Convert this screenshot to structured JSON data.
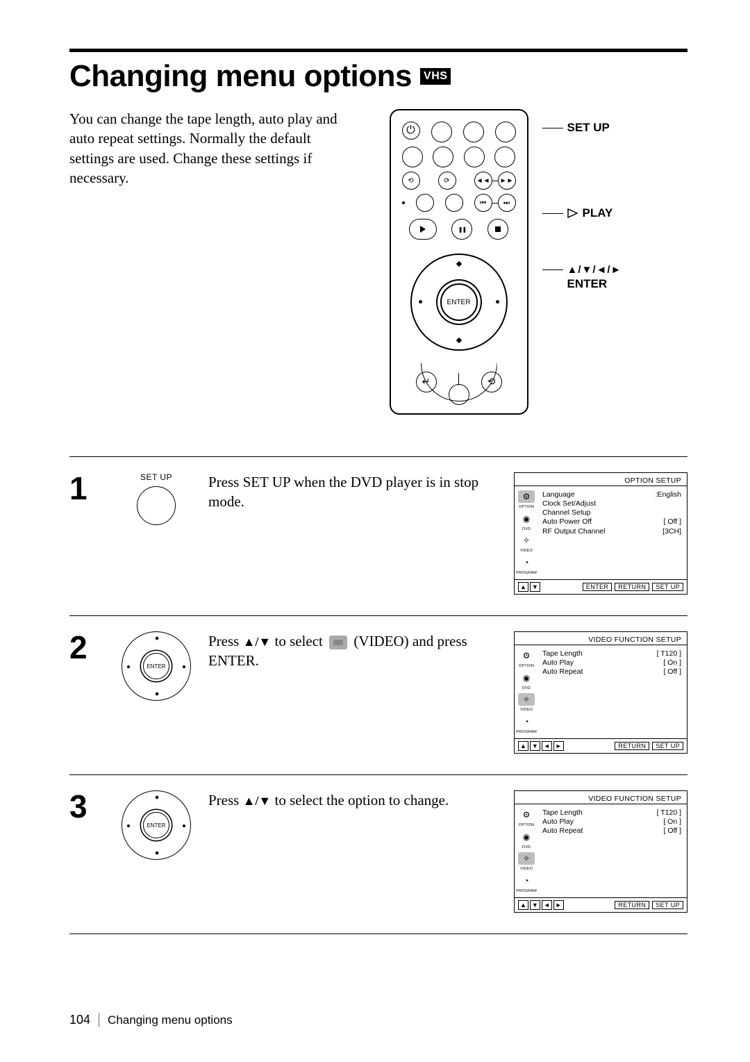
{
  "title": "Changing menu options",
  "vhs_badge": "VHS",
  "intro": "You can change the tape length, auto play and auto repeat settings.  Normally the default settings are used.  Change these settings if necessary.",
  "remote_labels": {
    "setup": "SET UP",
    "play": "PLAY",
    "arrows": "▲/▼/◄/►",
    "enter": "ENTER",
    "enter_btn": "ENTER"
  },
  "steps": [
    {
      "num": "1",
      "icon_label": "SET UP",
      "text_pre": "Press SET UP when the DVD player is in stop mode.",
      "osd": {
        "title": "OPTION SETUP",
        "side_hl": 0,
        "rows": [
          {
            "l": "Language",
            "r": ":English"
          },
          {
            "l": "Clock Set/Adjust",
            "r": ""
          },
          {
            "l": "Channel Setup",
            "r": ""
          },
          {
            "l": "Auto Power Off",
            "r": "[ Off ]"
          },
          {
            "l": "RF Output Channel",
            "r": "[3CH]"
          }
        ],
        "foot_arrows": [
          "▲",
          "▼"
        ],
        "foot_btns": [
          "ENTER",
          "RETURN",
          "SET UP"
        ]
      }
    },
    {
      "num": "2",
      "text_pre": "Press ",
      "arrows": "▲/▼",
      "text_mid": " to select ",
      "video_label": " (VIDEO) and press ENTER.",
      "osd": {
        "title": "VIDEO FUNCTION SETUP",
        "side_hl": 2,
        "rows": [
          {
            "l": "Tape Length",
            "r": "[ T120 ]"
          },
          {
            "l": "Auto Play",
            "r": "[ On ]"
          },
          {
            "l": "Auto Repeat",
            "r": "[ Off ]"
          }
        ],
        "foot_arrows": [
          "▲",
          "▼",
          "◄",
          "►"
        ],
        "foot_btns": [
          "RETURN",
          "SET UP"
        ]
      }
    },
    {
      "num": "3",
      "text_pre": "Press ",
      "arrows": "▲/▼",
      "text_post": " to select the option to change.",
      "osd": {
        "title": "VIDEO FUNCTION SETUP",
        "side_hl": 2,
        "rows": [
          {
            "l": "Tape Length",
            "r": "[ T120 ]"
          },
          {
            "l": "Auto Play",
            "r": "[ On ]"
          },
          {
            "l": "Auto Repeat",
            "r": "[ Off ]"
          }
        ],
        "foot_arrows": [
          "▲",
          "▼",
          "◄",
          "►"
        ],
        "foot_btns": [
          "RETURN",
          "SET UP"
        ]
      }
    }
  ],
  "side_icons": [
    {
      "glyph": "⚙",
      "label": "OPTION"
    },
    {
      "glyph": "◉",
      "label": "DVD"
    },
    {
      "glyph": "✧",
      "label": "VIDEO"
    },
    {
      "glyph": "◔",
      "label": "PROGRAM"
    }
  ],
  "footer": {
    "page": "104",
    "text": "Changing menu options"
  }
}
